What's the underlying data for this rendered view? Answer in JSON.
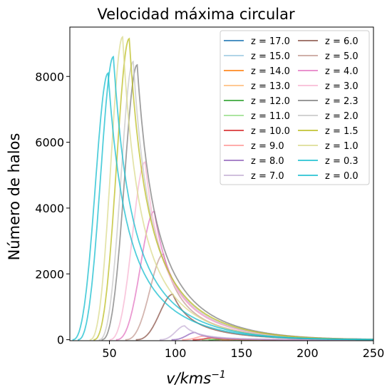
{
  "chart_data": {
    "type": "line",
    "title": "Velocidad máxima circular",
    "xlabel_base": "v/kms",
    "xlabel_exp": "−1",
    "ylabel": "Número de halos",
    "xlim": [
      20,
      250
    ],
    "ylim": [
      -30,
      9500
    ],
    "xticks": [
      50,
      100,
      150,
      200,
      250
    ],
    "yticks": [
      0,
      2000,
      4000,
      6000,
      8000
    ],
    "grid": false,
    "legend_position": "top-right",
    "legend_columns": 2,
    "series": [
      {
        "name": "z = 17.0",
        "color": "#1f77b4",
        "peak_v": 155,
        "peak_n": 0,
        "v_start": 150
      },
      {
        "name": "z = 15.0",
        "color": "#9ecae1",
        "peak_v": 150,
        "peak_n": 2,
        "v_start": 140
      },
      {
        "name": "z = 14.0",
        "color": "#ff7f0e",
        "peak_v": 146,
        "peak_n": 4,
        "v_start": 135
      },
      {
        "name": "z = 13.0",
        "color": "#ffbb78",
        "peak_v": 142,
        "peak_n": 8,
        "v_start": 130
      },
      {
        "name": "z = 12.0",
        "color": "#2ca02c",
        "peak_v": 138,
        "peak_n": 16,
        "v_start": 125
      },
      {
        "name": "z = 11.0",
        "color": "#98df8a",
        "peak_v": 133,
        "peak_n": 30,
        "v_start": 120
      },
      {
        "name": "z = 10.0",
        "color": "#d62728",
        "peak_v": 128,
        "peak_n": 55,
        "v_start": 113
      },
      {
        "name": "z = 9.0",
        "color": "#ff9896",
        "peak_v": 122,
        "peak_n": 110,
        "v_start": 105
      },
      {
        "name": "z = 8.0",
        "color": "#9467bd",
        "peak_v": 115,
        "peak_n": 220,
        "v_start": 97
      },
      {
        "name": "z = 7.0",
        "color": "#c5b0d5",
        "peak_v": 107,
        "peak_n": 420,
        "v_start": 88
      },
      {
        "name": "z = 6.0",
        "color": "#8c564b",
        "peak_v": 98,
        "peak_n": 1380,
        "v_start": 70
      },
      {
        "name": "z = 5.0",
        "color": "#c49c94",
        "peak_v": 91,
        "peak_n": 2600,
        "v_start": 62
      },
      {
        "name": "z = 4.0",
        "color": "#e377c2",
        "peak_v": 84,
        "peak_n": 3900,
        "v_start": 55
      },
      {
        "name": "z = 3.0",
        "color": "#f7b6d2",
        "peak_v": 77,
        "peak_n": 5400,
        "v_start": 50
      },
      {
        "name": "z = 2.3",
        "color": "#7f7f7f",
        "peak_v": 71,
        "peak_n": 8350,
        "v_start": 44
      },
      {
        "name": "z = 2.0",
        "color": "#c7c7c7",
        "peak_v": 68,
        "peak_n": 8450,
        "v_start": 42
      },
      {
        "name": "z = 1.5",
        "color": "#bcbd22",
        "peak_v": 65,
        "peak_n": 9150,
        "v_start": 38
      },
      {
        "name": "z = 1.0",
        "color": "#dbdb8d",
        "peak_v": 60,
        "peak_n": 9200,
        "v_start": 35
      },
      {
        "name": "z = 0.3",
        "color": "#17becf",
        "peak_v": 53,
        "peak_n": 8600,
        "v_start": 26
      },
      {
        "name": "z = 0.0",
        "color": "#17becf",
        "peak_v": 49,
        "peak_n": 8100,
        "v_start": 22
      }
    ]
  }
}
